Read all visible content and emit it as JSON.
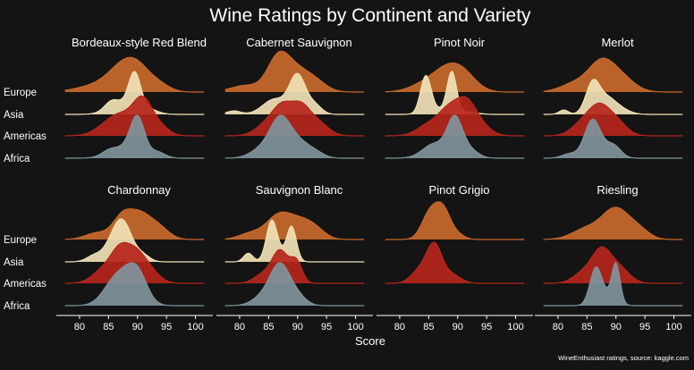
{
  "chart_data": {
    "type": "ridgeline",
    "title": "Wine Ratings by Continent and Variety",
    "xlabel": "Score",
    "ylabel": "",
    "caption": "WineEnthusiast ratings, source: kaggle.com",
    "xlim": [
      76,
      103
    ],
    "xticks": [
      80,
      85,
      90,
      95,
      100
    ],
    "grid": false,
    "rows": [
      "Europe",
      "Asia",
      "Americas",
      "Africa"
    ],
    "colors": {
      "Europe": "#c8692b",
      "Asia": "#f0e2b6",
      "Americas": "#b5261b",
      "Africa": "#7f949c"
    },
    "panels": [
      {
        "name": "Bordeaux-style Red Blend",
        "series": [
          {
            "row": "Europe",
            "components": [
              [
                82,
                3,
                0.12
              ],
              [
                87,
                2.6,
                0.45
              ],
              [
                90,
                2.4,
                0.5
              ],
              [
                94,
                1.8,
                0.12
              ]
            ]
          },
          {
            "row": "Asia",
            "components": [
              [
                85.5,
                1.2,
                0.22
              ],
              [
                89.5,
                1.0,
                0.95
              ],
              [
                88,
                2.5,
                0.3
              ],
              [
                92,
                1.5,
                0.1
              ]
            ]
          },
          {
            "row": "Americas",
            "components": [
              [
                86,
                2.5,
                0.3
              ],
              [
                91,
                1.6,
                0.62
              ],
              [
                89,
                3,
                0.3
              ],
              [
                94,
                1.5,
                0.15
              ]
            ]
          },
          {
            "row": "Africa",
            "components": [
              [
                85,
                1.2,
                0.1
              ],
              [
                90,
                1.2,
                0.95
              ],
              [
                88,
                2.5,
                0.3
              ],
              [
                93.5,
                1.3,
                0.15
              ]
            ]
          }
        ]
      },
      {
        "name": "Cabernet Sauvignon",
        "series": [
          {
            "row": "Europe",
            "components": [
              [
                81,
                2.5,
                0.15
              ],
              [
                86.5,
                1.8,
                0.55
              ],
              [
                89,
                2.6,
                0.55
              ],
              [
                93,
                2,
                0.2
              ]
            ]
          },
          {
            "row": "Asia",
            "components": [
              [
                79,
                1.2,
                0.08
              ],
              [
                86,
                2,
                0.35
              ],
              [
                90,
                1.4,
                0.9
              ],
              [
                93,
                1.2,
                0.2
              ]
            ]
          },
          {
            "row": "Americas",
            "components": [
              [
                85,
                2,
                0.3
              ],
              [
                87.5,
                1.6,
                0.55
              ],
              [
                90.5,
                1.6,
                0.62
              ],
              [
                93.5,
                1.8,
                0.3
              ]
            ]
          },
          {
            "row": "Africa",
            "components": [
              [
                84,
                2,
                0.25
              ],
              [
                87,
                1.7,
                0.95
              ],
              [
                90,
                1.8,
                0.4
              ],
              [
                93,
                1.5,
                0.15
              ]
            ]
          }
        ]
      },
      {
        "name": "Pinot Noir",
        "series": [
          {
            "row": "Europe",
            "components": [
              [
                84,
                2.5,
                0.15
              ],
              [
                88,
                2.5,
                0.45
              ],
              [
                91,
                2.3,
                0.35
              ]
            ]
          },
          {
            "row": "Asia",
            "components": [
              [
                84.5,
                0.9,
                0.9
              ],
              [
                89,
                0.8,
                0.98
              ],
              [
                87,
                2,
                0.12
              ],
              [
                92,
                1.5,
                0.05
              ]
            ]
          },
          {
            "row": "Americas",
            "components": [
              [
                85,
                2,
                0.25
              ],
              [
                88.5,
                1.8,
                0.55
              ],
              [
                91.5,
                1.7,
                0.68
              ],
              [
                94,
                1.8,
                0.2
              ]
            ]
          },
          {
            "row": "Africa",
            "components": [
              [
                86,
                2,
                0.35
              ],
              [
                89.5,
                1.3,
                0.92
              ],
              [
                92,
                1.5,
                0.2
              ]
            ]
          }
        ]
      },
      {
        "name": "Merlot",
        "series": [
          {
            "row": "Europe",
            "components": [
              [
                83,
                2.5,
                0.2
              ],
              [
                87.5,
                2.2,
                0.65
              ],
              [
                91,
                2.3,
                0.3
              ]
            ]
          },
          {
            "row": "Asia",
            "components": [
              [
                81,
                0.8,
                0.1
              ],
              [
                86,
                1.2,
                0.72
              ],
              [
                88.5,
                1.5,
                0.35
              ],
              [
                91,
                1.5,
                0.1
              ]
            ]
          },
          {
            "row": "Americas",
            "components": [
              [
                84,
                1.8,
                0.25
              ],
              [
                87,
                1.8,
                0.62
              ],
              [
                90,
                1.8,
                0.32
              ]
            ]
          },
          {
            "row": "Africa",
            "components": [
              [
                82,
                1.3,
                0.1
              ],
              [
                86,
                1.4,
                0.9
              ],
              [
                89.5,
                1.3,
                0.3
              ]
            ]
          }
        ]
      },
      {
        "name": "Chardonnay",
        "series": [
          {
            "row": "Europe",
            "components": [
              [
                83,
                2,
                0.15
              ],
              [
                87.5,
                1.7,
                0.55
              ],
              [
                90.5,
                1.7,
                0.48
              ],
              [
                93.5,
                1.8,
                0.3
              ]
            ]
          },
          {
            "row": "Asia",
            "components": [
              [
                82.5,
                1.3,
                0.15
              ],
              [
                87.5,
                1.6,
                0.95
              ],
              [
                85.5,
                1.5,
                0.3
              ],
              [
                91,
                1.2,
                0.15
              ]
            ]
          },
          {
            "row": "Americas",
            "components": [
              [
                84.5,
                2,
                0.35
              ],
              [
                87,
                1.5,
                0.58
              ],
              [
                89.5,
                1.6,
                0.6
              ],
              [
                92,
                1.7,
                0.3
              ]
            ]
          },
          {
            "row": "Africa",
            "components": [
              [
                86,
                2,
                0.55
              ],
              [
                90,
                1.7,
                0.75
              ],
              [
                88,
                1.8,
                0.3
              ]
            ]
          }
        ]
      },
      {
        "name": "Sauvignon Blanc",
        "series": [
          {
            "row": "Europe",
            "components": [
              [
                82,
                2,
                0.15
              ],
              [
                86.5,
                2,
                0.48
              ],
              [
                90,
                2.2,
                0.4
              ],
              [
                93,
                1.8,
                0.2
              ]
            ]
          },
          {
            "row": "Asia",
            "components": [
              [
                81.5,
                0.8,
                0.2
              ],
              [
                85.5,
                0.9,
                0.85
              ],
              [
                89,
                0.8,
                0.75
              ],
              [
                87,
                1.5,
                0.2
              ]
            ]
          },
          {
            "row": "Americas",
            "components": [
              [
                84,
                1.5,
                0.2
              ],
              [
                87,
                1.4,
                0.75
              ],
              [
                89.8,
                1,
                0.48
              ]
            ]
          },
          {
            "row": "Africa",
            "components": [
              [
                84,
                1.8,
                0.2
              ],
              [
                87,
                1.7,
                0.95
              ],
              [
                90,
                1.5,
                0.2
              ]
            ]
          }
        ]
      },
      {
        "name": "Pinot Grigio",
        "series": [
          {
            "row": "Europe",
            "components": [
              [
                85.2,
                1.4,
                0.6
              ],
              [
                87.5,
                1.3,
                0.65
              ],
              [
                90,
                1.2,
                0.1
              ]
            ]
          },
          {
            "row": "Americas",
            "components": [
              [
                83.5,
                1.5,
                0.3
              ],
              [
                86,
                1.3,
                0.85
              ],
              [
                89,
                1.5,
                0.2
              ]
            ]
          }
        ]
      },
      {
        "name": "Riesling",
        "series": [
          {
            "row": "Europe",
            "components": [
              [
                85,
                2.5,
                0.25
              ],
              [
                90,
                2.3,
                0.7
              ],
              [
                94,
                1.8,
                0.2
              ]
            ]
          },
          {
            "row": "Americas",
            "components": [
              [
                84.5,
                1.8,
                0.25
              ],
              [
                87.5,
                1.6,
                0.7
              ],
              [
                90.5,
                1.8,
                0.35
              ]
            ]
          },
          {
            "row": "Africa",
            "components": [
              [
                86.5,
                1.0,
                0.85
              ],
              [
                90,
                0.7,
                0.95
              ],
              [
                88.3,
                1.5,
                0.25
              ]
            ]
          }
        ]
      }
    ]
  }
}
